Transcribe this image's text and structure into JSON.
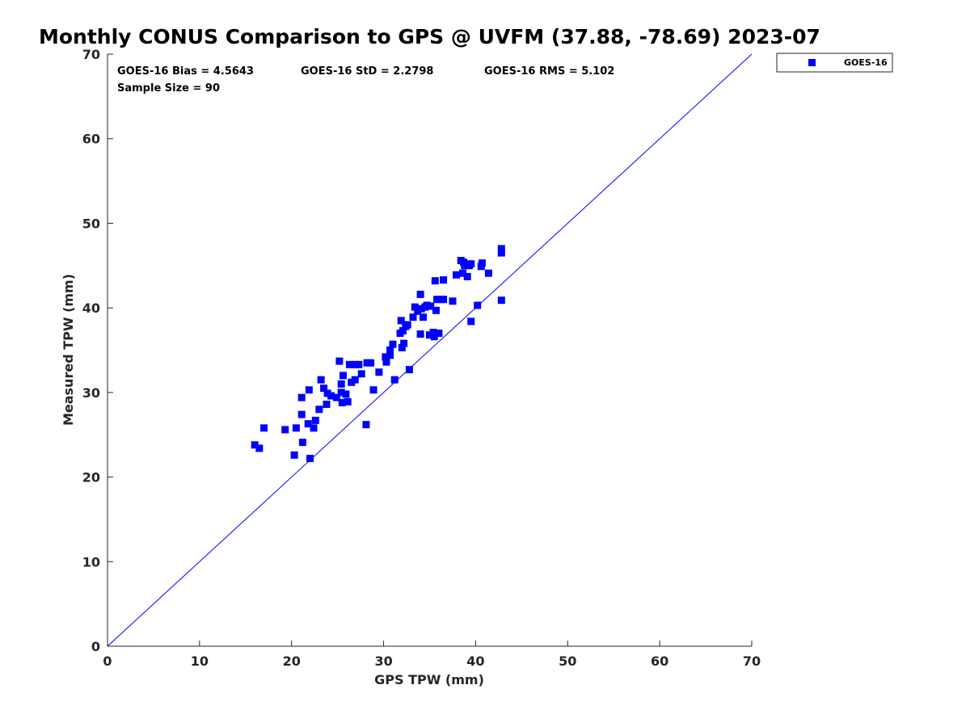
{
  "chart_data": {
    "type": "scatter",
    "title": "Monthly CONUS Comparison to GPS @ UVFM (37.88, -78.69) 2023-07",
    "xlabel": "GPS TPW (mm)",
    "ylabel": "Measured TPW (mm)",
    "xlim": [
      0,
      70
    ],
    "ylim": [
      0,
      70
    ],
    "xticks": [
      "0",
      "10",
      "20",
      "30",
      "40",
      "50",
      "60",
      "70"
    ],
    "yticks": [
      "0",
      "10",
      "20",
      "30",
      "40",
      "50",
      "60",
      "70"
    ],
    "grid": false,
    "legend_position": "outside top-right",
    "annotations": {
      "bias": "GOES-16 Bias = 4.5643",
      "std": "GOES-16 StD = 2.2798",
      "rms": "GOES-16 RMS = 5.102",
      "sample": "Sample Size = 90"
    },
    "reference_line": {
      "name": "1:1 line",
      "color": "#0000ff",
      "from": [
        0,
        0
      ],
      "to": [
        70,
        70
      ]
    },
    "series": [
      {
        "name": "GOES-16",
        "color": "#0000ff",
        "marker": "square",
        "points": [
          [
            16.0,
            23.8
          ],
          [
            16.5,
            23.4
          ],
          [
            17.0,
            25.8
          ],
          [
            19.3,
            25.6
          ],
          [
            20.3,
            22.6
          ],
          [
            20.5,
            25.8
          ],
          [
            21.1,
            27.4
          ],
          [
            21.1,
            29.4
          ],
          [
            21.2,
            24.1
          ],
          [
            21.8,
            26.3
          ],
          [
            21.9,
            30.3
          ],
          [
            22.0,
            22.2
          ],
          [
            22.4,
            25.8
          ],
          [
            22.6,
            26.7
          ],
          [
            23.0,
            28.0
          ],
          [
            23.2,
            31.5
          ],
          [
            23.5,
            30.5
          ],
          [
            23.8,
            28.6
          ],
          [
            23.9,
            29.9
          ],
          [
            24.3,
            29.6
          ],
          [
            24.9,
            29.4
          ],
          [
            25.2,
            33.7
          ],
          [
            25.4,
            30.0
          ],
          [
            25.4,
            31.0
          ],
          [
            25.5,
            28.8
          ],
          [
            25.6,
            32.0
          ],
          [
            25.9,
            29.8
          ],
          [
            26.1,
            28.9
          ],
          [
            26.3,
            33.3
          ],
          [
            26.5,
            31.2
          ],
          [
            26.9,
            31.5
          ],
          [
            26.9,
            33.3
          ],
          [
            27.3,
            33.3
          ],
          [
            27.6,
            32.2
          ],
          [
            28.1,
            26.2
          ],
          [
            28.2,
            33.5
          ],
          [
            28.6,
            33.5
          ],
          [
            28.9,
            30.3
          ],
          [
            29.5,
            32.4
          ],
          [
            30.2,
            34.2
          ],
          [
            30.3,
            33.6
          ],
          [
            30.7,
            35.0
          ],
          [
            30.7,
            34.4
          ],
          [
            31.0,
            35.7
          ],
          [
            31.2,
            31.5
          ],
          [
            31.8,
            37.0
          ],
          [
            31.9,
            38.5
          ],
          [
            32.0,
            35.3
          ],
          [
            32.1,
            37.3
          ],
          [
            32.2,
            35.8
          ],
          [
            32.4,
            37.8
          ],
          [
            32.6,
            38.0
          ],
          [
            32.8,
            32.7
          ],
          [
            33.2,
            38.9
          ],
          [
            33.4,
            40.1
          ],
          [
            33.7,
            39.6
          ],
          [
            34.0,
            41.6
          ],
          [
            34.0,
            36.9
          ],
          [
            34.1,
            39.9
          ],
          [
            34.3,
            38.9
          ],
          [
            34.5,
            40.1
          ],
          [
            34.7,
            40.3
          ],
          [
            35.0,
            36.8
          ],
          [
            35.1,
            40.2
          ],
          [
            35.4,
            37.1
          ],
          [
            35.5,
            36.6
          ],
          [
            35.6,
            43.2
          ],
          [
            35.7,
            39.7
          ],
          [
            35.8,
            41.0
          ],
          [
            36.0,
            37.0
          ],
          [
            36.3,
            41.0
          ],
          [
            36.5,
            43.3
          ],
          [
            36.5,
            41.0
          ],
          [
            37.5,
            40.8
          ],
          [
            37.9,
            43.9
          ],
          [
            38.4,
            45.6
          ],
          [
            38.6,
            44.1
          ],
          [
            38.7,
            45.4
          ],
          [
            38.8,
            45.0
          ],
          [
            39.1,
            43.7
          ],
          [
            39.3,
            45.0
          ],
          [
            39.5,
            38.4
          ],
          [
            39.5,
            45.2
          ],
          [
            40.2,
            40.3
          ],
          [
            40.6,
            44.9
          ],
          [
            40.7,
            45.3
          ],
          [
            41.4,
            44.1
          ],
          [
            42.8,
            47.0
          ],
          [
            42.8,
            46.5
          ],
          [
            42.8,
            40.9
          ]
        ]
      }
    ]
  }
}
